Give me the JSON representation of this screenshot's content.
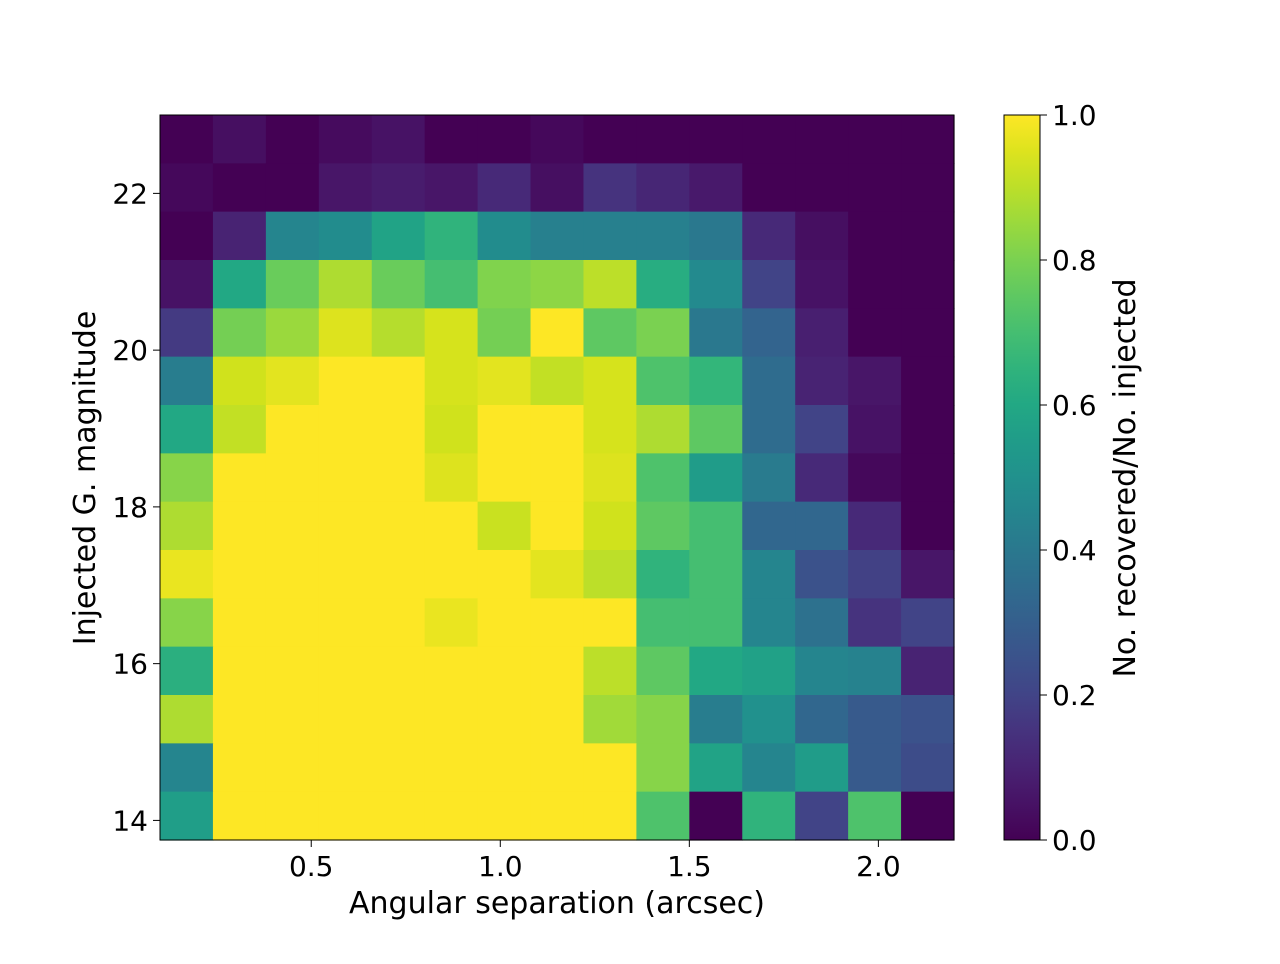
{
  "chart_data": {
    "type": "heatmap",
    "title": "",
    "xlabel": "Angular separation (arcsec)",
    "ylabel": "Injected G. magnitude",
    "colorbar_label": "No. recovered/No. injected",
    "colormap": "viridis",
    "x_bin_edges": [
      0.1,
      0.24,
      0.38,
      0.52,
      0.66,
      0.8,
      0.94,
      1.08,
      1.22,
      1.36,
      1.5,
      1.64,
      1.78,
      1.92,
      2.06,
      2.2
    ],
    "y_bin_edges": [
      13.75,
      14.367,
      14.983,
      15.6,
      16.217,
      16.833,
      17.45,
      18.067,
      18.683,
      19.3,
      19.917,
      20.533,
      21.15,
      21.767,
      22.383,
      23.0
    ],
    "xlim": [
      0.1,
      2.2
    ],
    "ylim": [
      13.75,
      23.0
    ],
    "x_ticks": [
      0.5,
      1.0,
      1.5,
      2.0
    ],
    "x_tick_labels": [
      "0.5",
      "1.0",
      "1.5",
      "2.0"
    ],
    "y_ticks": [
      14,
      16,
      18,
      20,
      22
    ],
    "y_tick_labels": [
      "14",
      "16",
      "18",
      "20",
      "22"
    ],
    "colorbar_range": [
      0.0,
      1.0
    ],
    "colorbar_ticks": [
      0.0,
      0.2,
      0.4,
      0.6,
      0.8,
      1.0
    ],
    "colorbar_tick_labels": [
      "0.0",
      "0.2",
      "0.4",
      "0.6",
      "0.8",
      "1.0"
    ],
    "values": [
      [
        0.0,
        0.04,
        0.0,
        0.03,
        0.05,
        0.0,
        0.0,
        0.02,
        0.0,
        0.0,
        0.0,
        0.0,
        0.0,
        0.0,
        0.0
      ],
      [
        0.02,
        0.0,
        0.0,
        0.06,
        0.08,
        0.06,
        0.12,
        0.04,
        0.15,
        0.11,
        0.07,
        0.0,
        0.0,
        0.0,
        0.0
      ],
      [
        0.0,
        0.1,
        0.45,
        0.48,
        0.58,
        0.65,
        0.48,
        0.43,
        0.43,
        0.43,
        0.4,
        0.12,
        0.04,
        0.0,
        0.0
      ],
      [
        0.05,
        0.6,
        0.77,
        0.88,
        0.77,
        0.7,
        0.81,
        0.83,
        0.9,
        0.62,
        0.47,
        0.2,
        0.05,
        0.0,
        0.0
      ],
      [
        0.17,
        0.79,
        0.85,
        0.95,
        0.89,
        0.94,
        0.79,
        1.0,
        0.75,
        0.8,
        0.4,
        0.32,
        0.09,
        0.0,
        0.0
      ],
      [
        0.42,
        0.93,
        0.96,
        1.0,
        1.0,
        0.94,
        0.96,
        0.91,
        0.94,
        0.72,
        0.66,
        0.35,
        0.1,
        0.06,
        0.0
      ],
      [
        0.6,
        0.91,
        1.0,
        1.0,
        1.0,
        0.93,
        1.0,
        1.0,
        0.94,
        0.88,
        0.75,
        0.35,
        0.2,
        0.05,
        0.0
      ],
      [
        0.82,
        1.0,
        1.0,
        1.0,
        1.0,
        0.95,
        1.0,
        1.0,
        0.95,
        0.72,
        0.55,
        0.41,
        0.12,
        0.02,
        0.0
      ],
      [
        0.88,
        1.0,
        1.0,
        1.0,
        1.0,
        1.0,
        0.92,
        1.0,
        0.93,
        0.75,
        0.7,
        0.33,
        0.33,
        0.12,
        0.0
      ],
      [
        0.97,
        1.0,
        1.0,
        1.0,
        1.0,
        1.0,
        1.0,
        0.96,
        0.9,
        0.65,
        0.7,
        0.45,
        0.25,
        0.19,
        0.06
      ],
      [
        0.82,
        1.0,
        1.0,
        1.0,
        1.0,
        0.97,
        1.0,
        1.0,
        1.0,
        0.7,
        0.7,
        0.45,
        0.37,
        0.15,
        0.2
      ],
      [
        0.63,
        1.0,
        1.0,
        1.0,
        1.0,
        1.0,
        1.0,
        1.0,
        0.9,
        0.75,
        0.6,
        0.57,
        0.45,
        0.44,
        0.1
      ],
      [
        0.88,
        1.0,
        1.0,
        1.0,
        1.0,
        1.0,
        1.0,
        1.0,
        0.86,
        0.82,
        0.42,
        0.5,
        0.33,
        0.28,
        0.25
      ],
      [
        0.45,
        1.0,
        1.0,
        1.0,
        1.0,
        1.0,
        1.0,
        1.0,
        1.0,
        0.82,
        0.58,
        0.45,
        0.55,
        0.28,
        0.23
      ],
      [
        0.56,
        1.0,
        1.0,
        1.0,
        1.0,
        1.0,
        1.0,
        1.0,
        1.0,
        0.72,
        0.0,
        0.65,
        0.2,
        0.72,
        0.0
      ]
    ]
  }
}
